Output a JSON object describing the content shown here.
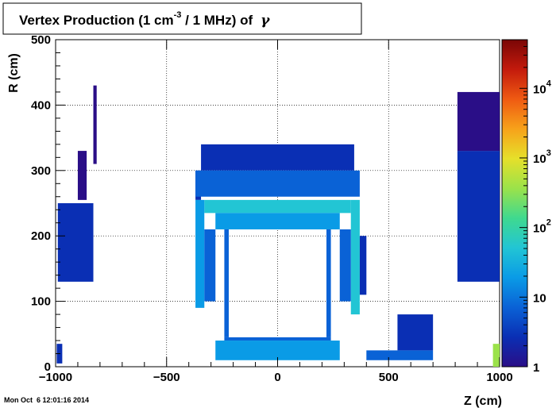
{
  "chart_data": {
    "type": "heatmap",
    "title_main": "Vertex Production (1 cm",
    "title_sup": "-3",
    "title_rest": " / 1 MHz) of",
    "title_symbol": "γ",
    "xlabel": "Z (cm)",
    "ylabel": "R (cm)",
    "xlim": [
      -1000,
      1000
    ],
    "ylim": [
      0,
      500
    ],
    "x_ticks": [
      -1000,
      -500,
      0,
      500,
      1000
    ],
    "x_tick_labels": [
      "−1000",
      "−500",
      "0",
      "500",
      "1000"
    ],
    "y_ticks": [
      0,
      100,
      200,
      300,
      400,
      500
    ],
    "y_tick_labels": [
      "0",
      "100",
      "200",
      "300",
      "400",
      "500"
    ],
    "grid": true,
    "colorbar": {
      "scale": "log",
      "range": [
        1,
        50000
      ],
      "labels": [
        {
          "value": 1,
          "base": "1",
          "exp": ""
        },
        {
          "value": 10,
          "base": "10",
          "exp": ""
        },
        {
          "value": 100,
          "base": "10",
          "exp": "2"
        },
        {
          "value": 1000,
          "base": "10",
          "exp": "3"
        },
        {
          "value": 10000,
          "base": "10",
          "exp": "4"
        }
      ],
      "colors": [
        "#2a0e87",
        "#0a2fb4",
        "#0a62d6",
        "#0a9be6",
        "#22c5d4",
        "#3fd98f",
        "#9be24a",
        "#e6e02a",
        "#f7a21a",
        "#ef5a12",
        "#c31a0c",
        "#7a0606"
      ]
    },
    "regions": [
      {
        "z": [
          -990,
          -830
        ],
        "r": [
          130,
          250
        ],
        "value": 3
      },
      {
        "z": [
          -900,
          -860
        ],
        "r": [
          255,
          330
        ],
        "value": 2
      },
      {
        "z": [
          -830,
          -815
        ],
        "r": [
          310,
          430
        ],
        "value": 2
      },
      {
        "z": [
          -370,
          -345
        ],
        "r": [
          255,
          300
        ],
        "value": 6
      },
      {
        "z": [
          -345,
          345
        ],
        "r": [
          300,
          340
        ],
        "value": 4
      },
      {
        "z": [
          -370,
          370
        ],
        "r": [
          260,
          300
        ],
        "value": 8
      },
      {
        "z": [
          -330,
          330
        ],
        "r": [
          235,
          255
        ],
        "value": 60
      },
      {
        "z": [
          -280,
          280
        ],
        "r": [
          210,
          235
        ],
        "value": 25
      },
      {
        "z": [
          -370,
          -330
        ],
        "r": [
          90,
          255
        ],
        "value": 20
      },
      {
        "z": [
          -330,
          -280
        ],
        "r": [
          100,
          210
        ],
        "value": 8
      },
      {
        "z": [
          330,
          370
        ],
        "r": [
          80,
          255
        ],
        "value": 80
      },
      {
        "z": [
          280,
          330
        ],
        "r": [
          100,
          210
        ],
        "value": 10
      },
      {
        "z": [
          370,
          400
        ],
        "r": [
          110,
          200
        ],
        "value": 3
      },
      {
        "z": [
          -240,
          -220
        ],
        "r": [
          45,
          210
        ],
        "value": 12
      },
      {
        "z": [
          220,
          240
        ],
        "r": [
          45,
          210
        ],
        "value": 12
      },
      {
        "z": [
          -240,
          240
        ],
        "r": [
          40,
          45
        ],
        "value": 12
      },
      {
        "z": [
          -280,
          280
        ],
        "r": [
          10,
          40
        ],
        "value": 15
      },
      {
        "z": [
          400,
          700
        ],
        "r": [
          10,
          25
        ],
        "value": 12
      },
      {
        "z": [
          540,
          700
        ],
        "r": [
          25,
          80
        ],
        "value": 6
      },
      {
        "z": [
          810,
          1000
        ],
        "r": [
          130,
          330
        ],
        "value": 3
      },
      {
        "z": [
          810,
          1000
        ],
        "r": [
          330,
          420
        ],
        "value": 2
      },
      {
        "z": [
          -995,
          -970
        ],
        "r": [
          5,
          35
        ],
        "value": 6
      },
      {
        "z": [
          970,
          1000
        ],
        "r": [
          0,
          35
        ],
        "value": 300
      }
    ]
  },
  "footer": {
    "timestamp": "Mon Oct  6 12:01:16 2014"
  }
}
